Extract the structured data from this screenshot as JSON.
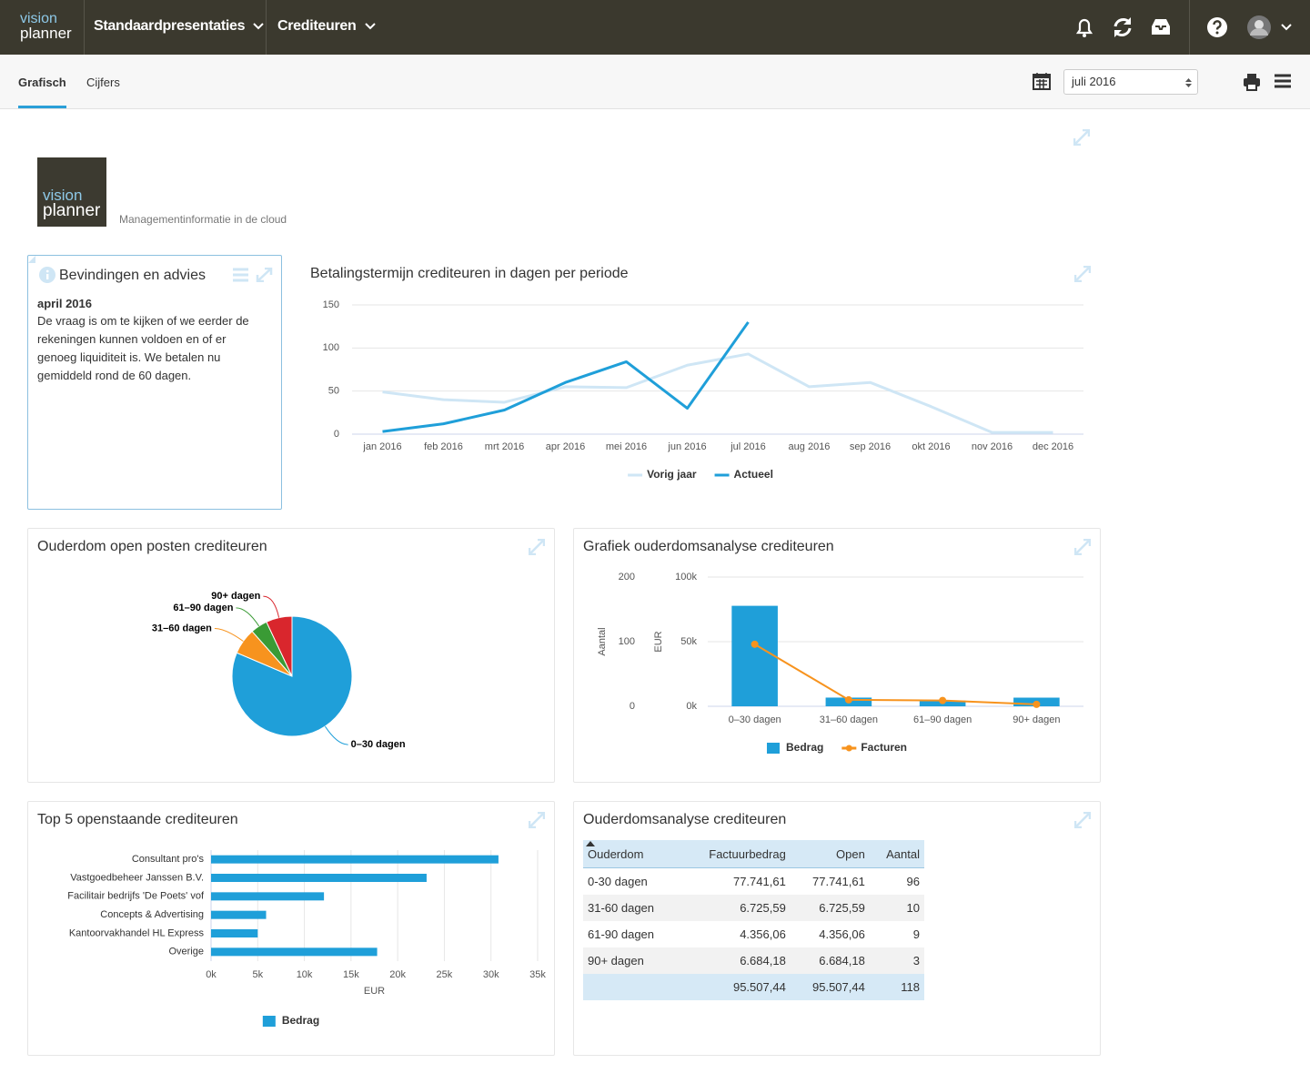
{
  "nav": {
    "brand": [
      "vision",
      "planner"
    ],
    "menus": [
      "Standaardpresentaties",
      "Crediteuren"
    ]
  },
  "tabs": [
    "Grafisch",
    "Cijfers"
  ],
  "period": "juli 2016",
  "logo": {
    "words": [
      "vision",
      "planner"
    ],
    "tagline": "Managementinformatie in de cloud"
  },
  "findings": {
    "title": "Bevindingen en advies",
    "date": "april 2016",
    "text": "De vraag is om te kijken of we eerder de rekeningen kunnen voldoen en of er genoeg liquiditeit is. We betalen nu gemiddeld rond de 60 dagen."
  },
  "chart_data": [
    {
      "type": "line",
      "title": "Betalingstermijn crediteuren in dagen per periode",
      "categories": [
        "jan 2016",
        "feb 2016",
        "mrt 2016",
        "apr 2016",
        "mei 2016",
        "jun 2016",
        "jul 2016",
        "aug 2016",
        "sep 2016",
        "okt 2016",
        "nov 2016",
        "dec 2016"
      ],
      "series": [
        {
          "name": "Vorig jaar",
          "color": "#cfe6f5",
          "values": [
            49,
            40,
            37,
            55,
            54,
            80,
            93,
            55,
            60,
            32,
            2,
            2
          ]
        },
        {
          "name": "Actueel",
          "color": "#1f9fd9",
          "values": [
            3,
            12,
            28,
            60,
            84,
            30,
            130,
            null,
            null,
            null,
            null,
            null
          ]
        }
      ],
      "ylim": [
        0,
        150
      ],
      "yticks": [
        0,
        50,
        100,
        150
      ],
      "grid": true,
      "legend": "bottom"
    },
    {
      "type": "pie",
      "title": "Ouderdom open posten crediteuren",
      "categories": [
        "0–30 dagen",
        "31–60 dagen",
        "61–90 dagen",
        "90+ dagen"
      ],
      "values": [
        77741.61,
        6725.59,
        4356.06,
        6684.18
      ],
      "colors": [
        "#1f9fd9",
        "#f7931e",
        "#3a9b35",
        "#d9262d"
      ]
    },
    {
      "type": "bar",
      "title": "Grafiek ouderdomsanalyse crediteuren",
      "categories": [
        "0–30 dagen",
        "31–60 dagen",
        "61–90 dagen",
        "90+ dagen"
      ],
      "series": [
        {
          "name": "Bedrag",
          "type": "bar",
          "color": "#1f9fd9",
          "values": [
            77741.61,
            6725.59,
            4356.06,
            6684.18
          ]
        },
        {
          "name": "Facturen",
          "type": "line",
          "markers": true,
          "axis": "y2",
          "color": "#f7931e",
          "values": [
            96,
            10,
            9,
            3
          ]
        }
      ],
      "ylabel": "EUR",
      "ylim": [
        0,
        100000
      ],
      "yticks": [
        {
          "value": 0,
          "label": "0k"
        },
        {
          "value": 50000,
          "label": "50k"
        },
        {
          "value": 100000,
          "label": "100k"
        }
      ],
      "y2label": "Aantal",
      "y2lim": [
        0,
        200
      ],
      "y2ticks": [
        0,
        100,
        200
      ],
      "grid": true,
      "legend": "bottom"
    },
    {
      "type": "bar",
      "horizontal": true,
      "title": "Top 5 openstaande crediteuren",
      "categories": [
        "Consultant pro's",
        "Vastgoedbeheer Janssen B.V.",
        "Facilitair bedrijfs 'De Poets' vof",
        "Concepts & Advertising",
        "Kantoorvakhandel HL Express",
        "Overige"
      ],
      "series": [
        {
          "name": "Bedrag",
          "type": "bar",
          "color": "#1f9fd9",
          "values": [
            30800,
            23100,
            12100,
            5900,
            5000,
            17800
          ]
        }
      ],
      "xlabel": "EUR",
      "xlim": [
        0,
        35000
      ],
      "xticks": [
        {
          "value": 0,
          "label": "0k"
        },
        {
          "value": 5000,
          "label": "5k"
        },
        {
          "value": 10000,
          "label": "10k"
        },
        {
          "value": 15000,
          "label": "15k"
        },
        {
          "value": 20000,
          "label": "20k"
        },
        {
          "value": 25000,
          "label": "25k"
        },
        {
          "value": 30000,
          "label": "30k"
        },
        {
          "value": 35000,
          "label": "35k"
        }
      ],
      "grid": true,
      "legend": "bottom"
    }
  ],
  "table": {
    "title": "Ouderdomsanalyse crediteuren",
    "header": [
      "Ouderdom",
      "Factuurbedrag",
      "Open",
      "Aantal"
    ],
    "rows": [
      [
        "0-30 dagen",
        "77.741,61",
        "77.741,61",
        "96"
      ],
      [
        "31-60 dagen",
        "6.725,59",
        "6.725,59",
        "10"
      ],
      [
        "61-90 dagen",
        "4.356,06",
        "4.356,06",
        "9"
      ],
      [
        "90+ dagen",
        "6.684,18",
        "6.684,18",
        "3"
      ]
    ],
    "totals": [
      "95.507,44",
      "95.507,44",
      "118"
    ]
  }
}
